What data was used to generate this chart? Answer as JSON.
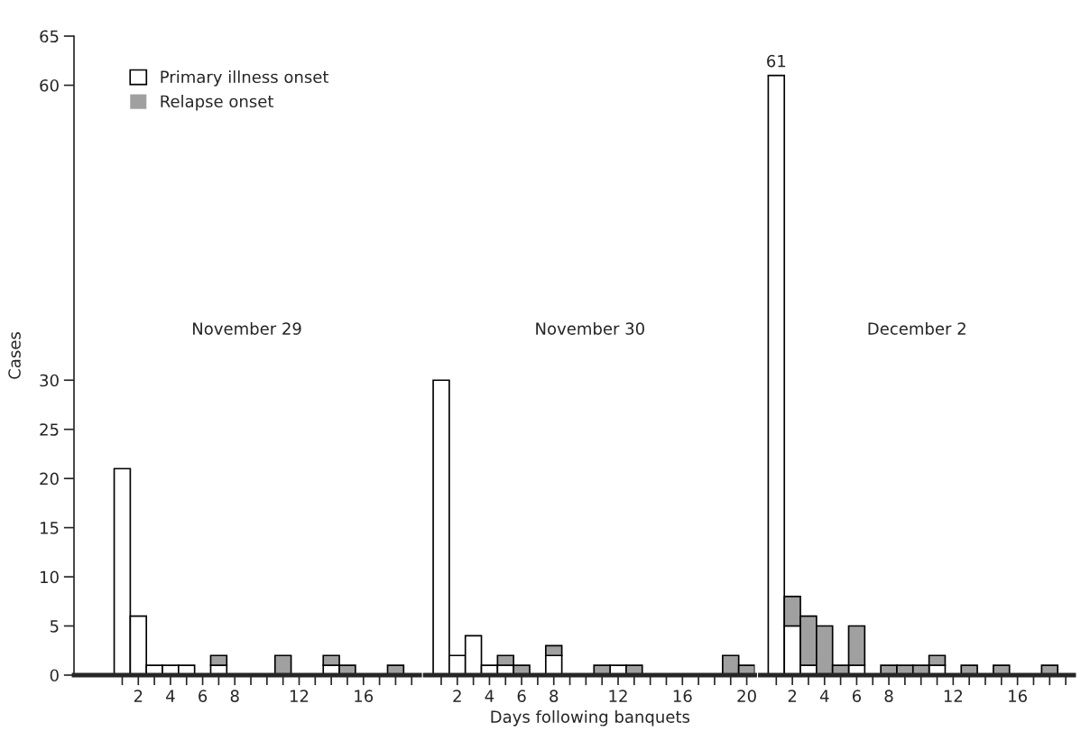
{
  "chart_data": [
    {
      "type": "bar",
      "stacked": true,
      "ylabel": "Cases",
      "title": "November 29",
      "legend": "top left",
      "tick_labels": true,
      "x": [
        1,
        2,
        3,
        4,
        5,
        6,
        7,
        8,
        9,
        10,
        11,
        12,
        13,
        14,
        15,
        16,
        17,
        18,
        19
      ],
      "series": [
        {
          "name": "Primary illness onset",
          "color": "#ffffff",
          "values": [
            21,
            6,
            1,
            1,
            1,
            0,
            1,
            0,
            0,
            0,
            0,
            0,
            0,
            1,
            0,
            0,
            0,
            0,
            0
          ]
        },
        {
          "name": "Relapse onset",
          "color": "#a0a0a0",
          "values": [
            0,
            0,
            0,
            0,
            0,
            0,
            1,
            0,
            0,
            0,
            2,
            0,
            0,
            1,
            1,
            0,
            0,
            1,
            0
          ]
        }
      ],
      "xlim": [
        -2,
        19.5
      ],
      "ylim": [
        0,
        65
      ],
      "xticks": [
        {
          "value": 1,
          "label": null
        },
        2,
        {
          "value": 3,
          "label": null
        },
        4,
        {
          "value": 5,
          "label": null
        },
        6,
        {
          "value": 7,
          "label": null
        },
        8,
        {
          "value": 9,
          "label": null
        },
        {
          "value": 10,
          "label": null
        },
        {
          "value": 11,
          "label": null
        },
        12,
        {
          "value": 13,
          "label": null
        },
        {
          "value": 14,
          "label": null
        },
        {
          "value": 15,
          "label": null
        },
        16,
        {
          "value": 17,
          "label": null
        },
        {
          "value": 18,
          "label": null
        },
        {
          "value": 19,
          "label": null
        }
      ],
      "yticks": [
        0,
        5,
        10,
        15,
        20,
        25,
        30,
        60,
        65
      ]
    },
    {
      "type": "bar",
      "stacked": true,
      "title": "November 30",
      "xlabel": "Days following banquets",
      "tick_labels": "x",
      "x": [
        1,
        2,
        3,
        4,
        5,
        6,
        7,
        8,
        9,
        10,
        11,
        12,
        13,
        14,
        15,
        16,
        17,
        18,
        19,
        20
      ],
      "series": [
        {
          "color": "#ffffff",
          "values": [
            30,
            2,
            4,
            1,
            1,
            0,
            0,
            2,
            0,
            0,
            0,
            1,
            0,
            0,
            0,
            0,
            0,
            0,
            0,
            0
          ]
        },
        {
          "color": "#a0a0a0",
          "values": [
            0,
            0,
            0,
            0,
            1,
            1,
            0,
            1,
            0,
            0,
            1,
            0,
            1,
            0,
            0,
            0,
            0,
            0,
            2,
            1
          ]
        }
      ],
      "xlim": [
        0,
        20.5
      ],
      "ylim": [
        0,
        65
      ],
      "xticks": [
        {
          "value": 1,
          "label": null
        },
        2,
        {
          "value": 3,
          "label": null
        },
        4,
        {
          "value": 5,
          "label": null
        },
        6,
        {
          "value": 7,
          "label": null
        },
        8,
        {
          "value": 9,
          "label": null
        },
        {
          "value": 10,
          "label": null
        },
        {
          "value": 11,
          "label": null
        },
        12,
        {
          "value": 13,
          "label": null
        },
        {
          "value": 14,
          "label": null
        },
        {
          "value": 15,
          "label": null
        },
        16,
        {
          "value": 17,
          "label": null
        },
        {
          "value": 18,
          "label": null
        },
        {
          "value": 19,
          "label": null
        },
        20
      ]
    },
    {
      "type": "bar",
      "stacked": true,
      "title": "December 2",
      "tick_labels": "x",
      "x": [
        1,
        2,
        3,
        4,
        5,
        6,
        7,
        8,
        9,
        10,
        11,
        12,
        13,
        14,
        15,
        16,
        17,
        18,
        19
      ],
      "series": [
        {
          "color": "#ffffff",
          "values": [
            61,
            5,
            1,
            0,
            0,
            1,
            0,
            0,
            0,
            0,
            1,
            0,
            0,
            0,
            0,
            0,
            0,
            0,
            0
          ]
        },
        {
          "color": "#a0a0a0",
          "values": [
            0,
            3,
            5,
            5,
            1,
            4,
            0,
            1,
            1,
            1,
            1,
            0,
            1,
            0,
            1,
            0,
            0,
            1,
            0
          ]
        }
      ],
      "annotations": [
        {
          "text": "61",
          "x": 1,
          "y": 61
        }
      ],
      "xlim": [
        0,
        19.5
      ],
      "ylim": [
        0,
        65
      ],
      "xticks": [
        {
          "value": 1,
          "label": null
        },
        2,
        {
          "value": 3,
          "label": null
        },
        4,
        {
          "value": 5,
          "label": null
        },
        6,
        {
          "value": 7,
          "label": null
        },
        8,
        {
          "value": 9,
          "label": null
        },
        {
          "value": 10,
          "label": null
        },
        {
          "value": 11,
          "label": null
        },
        12,
        {
          "value": 13,
          "label": null
        },
        {
          "value": 14,
          "label": null
        },
        {
          "value": 15,
          "label": null
        },
        16,
        {
          "value": 17,
          "label": null
        },
        {
          "value": 18,
          "label": null
        },
        {
          "value": 19,
          "label": null
        }
      ]
    }
  ]
}
